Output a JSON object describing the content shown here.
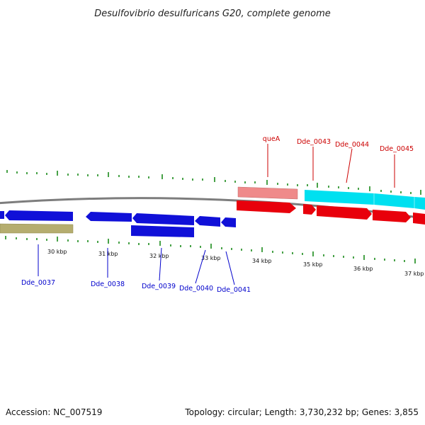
{
  "title": "Desulfovibrio desulfuricans G20, complete genome",
  "footer": {
    "accession": "Accession: NC_007519",
    "summary": "Topology: circular; Length: 3,730,232 bp; Genes: 3,855"
  },
  "colors": {
    "gene_forward": "#e8000b",
    "gene_reverse": "#1010d8",
    "label_forward": "#cc0000",
    "label_reverse": "#0000cc",
    "rna": "#00e0f0",
    "pseudo_pink": "#ef8a8a",
    "olive": "#b5ad6f",
    "backbone": "#7d7d7d",
    "tick": "#1a8a1a"
  },
  "kbp_ticks": [
    "30 kbp",
    "31 kbp",
    "32 kbp",
    "33 kbp",
    "34 kbp",
    "35 kbp",
    "36 kbp",
    "37 kbp"
  ],
  "forward_labels": [
    "queA",
    "Dde_0043",
    "Dde_0044",
    "Dde_0045"
  ],
  "reverse_labels": [
    "Dde_0037",
    "Dde_0038",
    "Dde_0039",
    "Dde_0040",
    "Dde_0041"
  ]
}
